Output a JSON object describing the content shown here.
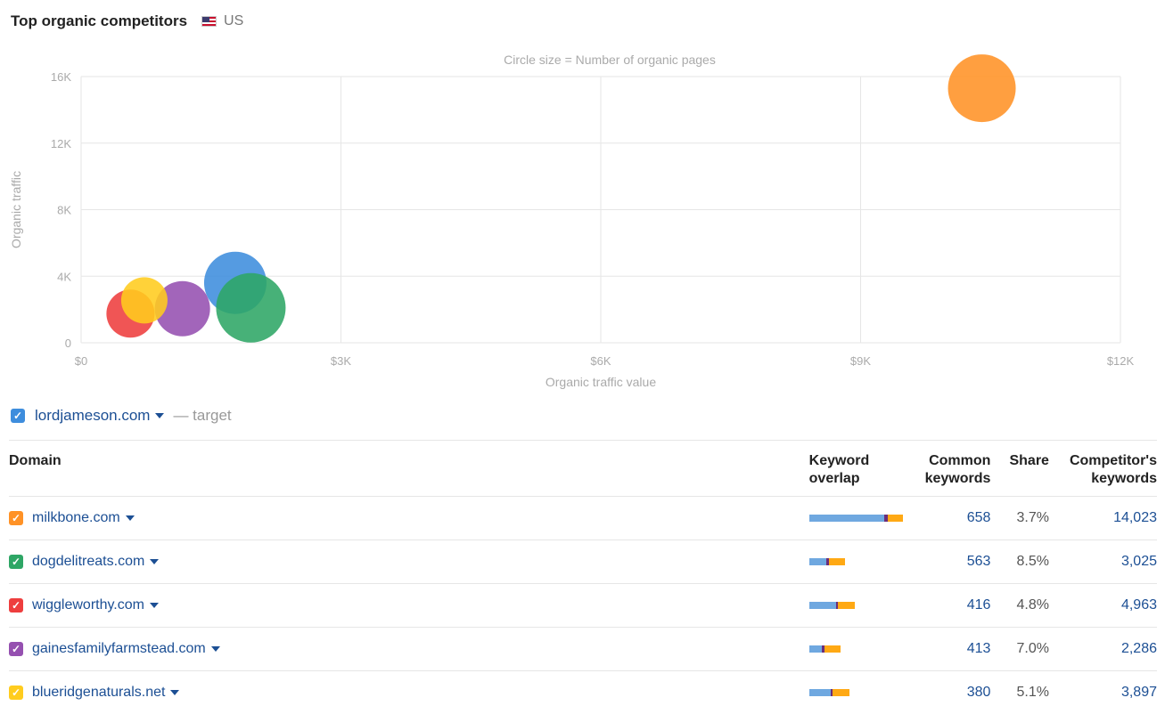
{
  "header": {
    "title": "Top organic competitors",
    "country": "US"
  },
  "chart_data": {
    "type": "bubble",
    "subtitle": "Circle size = Number of organic pages",
    "xlabel": "Organic traffic value",
    "ylabel": "Organic traffic",
    "xlim": [
      0,
      12000
    ],
    "ylim": [
      0,
      16000
    ],
    "x_ticks": [
      "$0",
      "$3K",
      "$6K",
      "$9K",
      "$12K"
    ],
    "y_ticks": [
      "0",
      "4K",
      "8K",
      "12K",
      "16K"
    ],
    "grid": true,
    "series": [
      {
        "domain": "milkbone.com",
        "color": "#ff9226",
        "x": 10400,
        "y": 15300,
        "size": 38
      },
      {
        "domain": "lordjameson.com",
        "color": "#3e8ddd",
        "x": 1780,
        "y": 3600,
        "size": 35
      },
      {
        "domain": "dogdelitreats.com",
        "color": "#2ea665",
        "x": 1960,
        "y": 2100,
        "size": 39
      },
      {
        "domain": "wiggleworthy.com",
        "color": "#ee3e3e",
        "x": 570,
        "y": 1750,
        "size": 27
      },
      {
        "domain": "gainesfamilyfarmstead.com",
        "color": "#9550b0",
        "x": 1170,
        "y": 2050,
        "size": 31
      },
      {
        "domain": "blueridgenaturals.net",
        "color": "#ffcc1e",
        "x": 730,
        "y": 2550,
        "size": 26
      }
    ]
  },
  "target": {
    "domain": "lordjameson.com",
    "suffix": "— target",
    "color": "#3e8ddd"
  },
  "table": {
    "headers": {
      "domain": "Domain",
      "overlap_1": "Keyword",
      "overlap_2": "overlap",
      "common_1": "Common",
      "common_2": "keywords",
      "share": "Share",
      "comp_1": "Competitor's",
      "comp_2": "keywords"
    },
    "rows": [
      {
        "domain": "milkbone.com",
        "color": "#ff9226",
        "common": "658",
        "share": "3.7%",
        "competitor": "14,023",
        "overlap": [
          84,
          4,
          17
        ]
      },
      {
        "domain": "dogdelitreats.com",
        "color": "#2ea665",
        "common": "563",
        "share": "8.5%",
        "competitor": "3,025",
        "overlap": [
          19,
          3,
          18
        ]
      },
      {
        "domain": "wiggleworthy.com",
        "color": "#ee3e3e",
        "common": "416",
        "share": "4.8%",
        "competitor": "4,963",
        "overlap": [
          30,
          2,
          19
        ]
      },
      {
        "domain": "gainesfamilyfarmstead.com",
        "color": "#9550b0",
        "common": "413",
        "share": "7.0%",
        "competitor": "2,286",
        "overlap": [
          14,
          3,
          18
        ]
      },
      {
        "domain": "blueridgenaturals.net",
        "color": "#ffcc1e",
        "common": "380",
        "share": "5.1%",
        "competitor": "3,897",
        "overlap": [
          24,
          2,
          19
        ]
      }
    ],
    "overlap_colors": [
      "#6fa8e0",
      "#6b2e7a",
      "#ffa914"
    ]
  }
}
